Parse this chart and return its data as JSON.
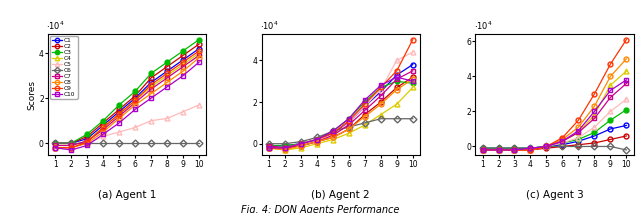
{
  "x": [
    1,
    2,
    3,
    4,
    5,
    6,
    7,
    8,
    9,
    10
  ],
  "title": "Fig. 4: DQN Agents Performance",
  "subplot_titles": [
    "(a) Agent 1",
    "(b) Agent 2",
    "(c) Agent 3"
  ],
  "ylabel": "Scores",
  "curves": {
    "C1": {
      "color": "#0000ff",
      "marker": "o",
      "filled": false,
      "lw": 0.9
    },
    "C2": {
      "color": "#cc0000",
      "marker": "o",
      "filled": false,
      "lw": 0.9
    },
    "C3": {
      "color": "#00bb00",
      "marker": "o",
      "filled": true,
      "lw": 0.9
    },
    "C4": {
      "color": "#ddcc00",
      "marker": "^",
      "filled": false,
      "lw": 0.9
    },
    "C5": {
      "color": "#ffbbbb",
      "marker": "^",
      "filled": false,
      "lw": 0.9
    },
    "C6": {
      "color": "#666666",
      "marker": "D",
      "filled": false,
      "lw": 0.9
    },
    "C7": {
      "color": "#cc0088",
      "marker": "s",
      "filled": false,
      "lw": 0.9
    },
    "C8": {
      "color": "#ff8800",
      "marker": "o",
      "filled": false,
      "lw": 0.9
    },
    "C9": {
      "color": "#ff3300",
      "marker": "o",
      "filled": false,
      "lw": 0.9
    },
    "C10": {
      "color": "#aa00cc",
      "marker": "s",
      "filled": false,
      "lw": 0.9
    }
  },
  "agent1": {
    "C1": [
      0,
      0,
      2000,
      8000,
      14000,
      20000,
      27000,
      32000,
      37000,
      42000
    ],
    "C2": [
      0,
      0,
      3000,
      9000,
      15000,
      21000,
      29000,
      34000,
      39000,
      44000
    ],
    "C3": [
      0,
      0,
      4000,
      10000,
      17000,
      23000,
      31000,
      36000,
      41000,
      46000
    ],
    "C4": [
      -1000,
      -1000,
      1000,
      7000,
      13000,
      19000,
      25000,
      30000,
      35000,
      40000
    ],
    "C5": [
      -2000,
      -2000,
      0,
      3000,
      5000,
      7000,
      10000,
      11000,
      14000,
      17000
    ],
    "C6": [
      0,
      0,
      0,
      0,
      0,
      0,
      0,
      0,
      0,
      0
    ],
    "C7": [
      -1000,
      -1000,
      1000,
      6000,
      12000,
      18000,
      24000,
      29000,
      34000,
      39000
    ],
    "C8": [
      -2000,
      -2000,
      0,
      5000,
      11000,
      17000,
      22000,
      27000,
      32000,
      38000
    ],
    "C9": [
      -2000,
      -2000,
      500,
      7000,
      13000,
      19000,
      26000,
      31000,
      36000,
      41000
    ],
    "C10": [
      -2000,
      -3000,
      -1000,
      4000,
      9000,
      15000,
      20000,
      25000,
      30000,
      36000
    ]
  },
  "agent2": {
    "C1": [
      -1000,
      -1000,
      0,
      2000,
      5000,
      10000,
      18000,
      25000,
      33000,
      38000
    ],
    "C2": [
      -2000,
      -2000,
      -1000,
      1000,
      3000,
      7000,
      14000,
      20000,
      27000,
      32000
    ],
    "C3": [
      -1000,
      -1000,
      0,
      2000,
      6000,
      12000,
      20000,
      27000,
      30000,
      29000
    ],
    "C4": [
      -2000,
      -3000,
      -2000,
      0,
      2000,
      5000,
      9000,
      14000,
      19000,
      27000
    ],
    "C5": [
      -2000,
      -2000,
      0,
      2000,
      4000,
      10000,
      18000,
      26000,
      40000,
      44000
    ],
    "C6": [
      0,
      0,
      1000,
      3000,
      6000,
      8000,
      10000,
      12000,
      12000,
      12000
    ],
    "C7": [
      -1000,
      -2000,
      -1000,
      1000,
      4000,
      9000,
      16000,
      23000,
      31000,
      35000
    ],
    "C8": [
      -2000,
      -3000,
      -1000,
      1000,
      3000,
      7000,
      13000,
      19000,
      26000,
      31000
    ],
    "C9": [
      -2000,
      -2000,
      0,
      2000,
      5000,
      11000,
      19000,
      27000,
      35000,
      50000
    ],
    "C10": [
      -2000,
      -2000,
      0,
      2000,
      6000,
      12000,
      21000,
      28000,
      32000,
      30000
    ]
  },
  "agent3": {
    "C1": [
      -1000,
      -1000,
      -1000,
      -1000,
      0,
      1000,
      3000,
      6000,
      10000,
      12000
    ],
    "C2": [
      -2000,
      -2000,
      -2000,
      -2000,
      -1000,
      0,
      1000,
      2000,
      4000,
      6000
    ],
    "C3": [
      -1000,
      -1000,
      -1000,
      -1000,
      0,
      2000,
      4000,
      8000,
      15000,
      21000
    ],
    "C4": [
      -2000,
      -2000,
      -2000,
      -2000,
      0,
      3000,
      8000,
      18000,
      35000,
      43000
    ],
    "C5": [
      -2000,
      -2000,
      -2000,
      -2000,
      0,
      2000,
      5000,
      11000,
      20000,
      27000
    ],
    "C6": [
      -1000,
      -1000,
      -1000,
      -1000,
      0,
      0,
      0,
      0,
      0,
      -2000
    ],
    "C7": [
      -2000,
      -2000,
      -2000,
      -2000,
      0,
      3000,
      8000,
      16000,
      28000,
      36000
    ],
    "C8": [
      -2000,
      -2000,
      -2000,
      -2000,
      0,
      4000,
      11000,
      23000,
      40000,
      50000
    ],
    "C9": [
      -2000,
      -2000,
      -2000,
      -2000,
      0,
      5000,
      15000,
      30000,
      47000,
      61000
    ],
    "C10": [
      -2000,
      -2000,
      -2000,
      -1000,
      0,
      3000,
      9000,
      20000,
      32000,
      38000
    ]
  }
}
